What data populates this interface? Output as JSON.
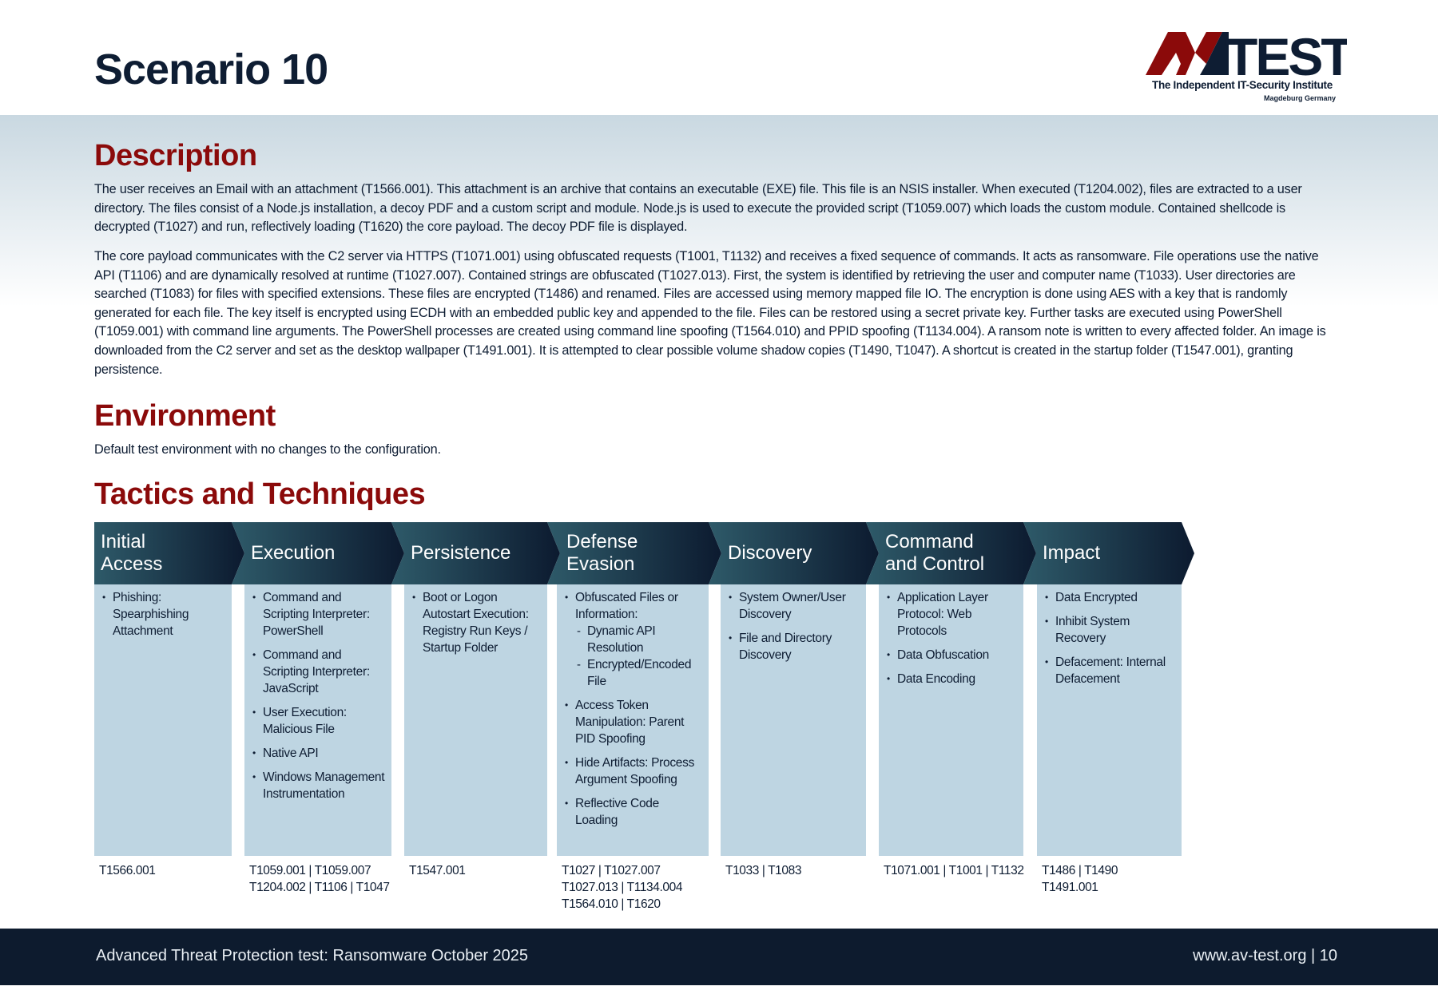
{
  "page": {
    "title": "Scenario 10"
  },
  "logo": {
    "text": "AV-TEST",
    "tagline": "The Independent IT-Security Institute",
    "location": "Magdeburg Germany",
    "colors": {
      "red": "#8b0a0a",
      "navy": "#0e1d33"
    }
  },
  "description": {
    "heading": "Description",
    "paragraphs": [
      "The user receives an Email with an attachment (T1566.001). This attachment is an archive that contains an executable (EXE) file. This file is an NSIS installer. When executed (T1204.002), files are extracted to a user directory. The files consist of a Node.js installation, a decoy PDF and a custom script and module. Node.js is used to execute the provided script (T1059.007) which loads the custom module. Contained shellcode is decrypted (T1027) and run, reflectively loading (T1620) the core payload. The decoy PDF file is displayed.",
      "The core payload communicates with the C2 server via HTTPS (T1071.001) using obfuscated requests (T1001, T1132) and receives a fixed sequence of commands. It acts as ransomware. File operations use the native API (T1106) and are dynamically resolved at runtime (T1027.007). Contained strings are obfuscated (T1027.013). First, the system is identified by retrieving the user and computer name (T1033). User directories are searched (T1083) for files with specified extensions. These files are encrypted (T1486) and renamed. Files are accessed using memory mapped file IO. The encryption is done using AES with a key that is randomly generated for each file. The key itself is encrypted using ECDH with an embedded public key and appended to the file. Files can be restored using a secret private key. Further tasks are executed using PowerShell (T1059.001) with command line arguments. The PowerShell processes are created using command line spoofing (T1564.010) and PPID spoofing (T1134.004).  A ransom note is written to every affected folder. An image is downloaded from the C2 server and set as the desktop wallpaper (T1491.001). It is attempted to clear possible volume shadow copies (T1490, T1047). A shortcut is created in the startup folder (T1547.001), granting persistence."
    ]
  },
  "environment": {
    "heading": "Environment",
    "text": "Default test environment with no changes to the configuration."
  },
  "tactics": {
    "heading": "Tactics and Techniques",
    "columns": [
      {
        "label": "Initial Access",
        "items": [
          {
            "text": "Phishing: Spearphishing Attachment"
          }
        ],
        "ids": [
          "T1566.001"
        ]
      },
      {
        "label": "Execution",
        "items": [
          {
            "text": "Command and Scripting Interpreter: PowerShell"
          },
          {
            "text": "Command and Scripting Interpreter: JavaScript"
          },
          {
            "text": "User Execution: Malicious File"
          },
          {
            "text": "Native API"
          },
          {
            "text": "Windows Management Instrumentation"
          }
        ],
        "ids": [
          "T1059.001 | T1059.007",
          "T1204.002 | T1106 | T1047"
        ]
      },
      {
        "label": "Persistence",
        "items": [
          {
            "text": "Boot or Logon Autostart Execution: Registry Run Keys / Startup Folder"
          }
        ],
        "ids": [
          "T1547.001"
        ]
      },
      {
        "label": "Defense Evasion",
        "items": [
          {
            "text": "Obfuscated Files or Information:",
            "subs": [
              "Dynamic API Resolution",
              "Encrypted/Encoded File"
            ]
          },
          {
            "text": "Access Token Manipulation: Parent PID Spoofing"
          },
          {
            "text": "Hide Artifacts: Process Argument Spoofing"
          },
          {
            "text": "Reflective Code Loading"
          }
        ],
        "ids": [
          "T1027 | T1027.007",
          "T1027.013 | T1134.004",
          "T1564.010 | T1620"
        ]
      },
      {
        "label": "Discovery",
        "items": [
          {
            "text": "System Owner/User Discovery"
          },
          {
            "text": "File and Directory Discovery"
          }
        ],
        "ids": [
          "T1033 | T1083"
        ]
      },
      {
        "label": "Command and Control",
        "items": [
          {
            "text": "Application Layer Protocol: Web Protocols"
          },
          {
            "text": "Data Obfuscation"
          },
          {
            "text": "Data Encoding"
          }
        ],
        "ids": [
          "T1071.001 | T1001 | T1132"
        ]
      },
      {
        "label": "Impact",
        "items": [
          {
            "text": "Data Encrypted"
          },
          {
            "text": "Inhibit System Recovery"
          },
          {
            "text": "Defacement: Internal Defacement"
          }
        ],
        "ids": [
          "T1486 | T1490",
          "T1491.001"
        ]
      }
    ]
  },
  "footer": {
    "left": "Advanced Threat Protection test: Ransomware October 2025",
    "right": "www.av-test.org | 10"
  }
}
